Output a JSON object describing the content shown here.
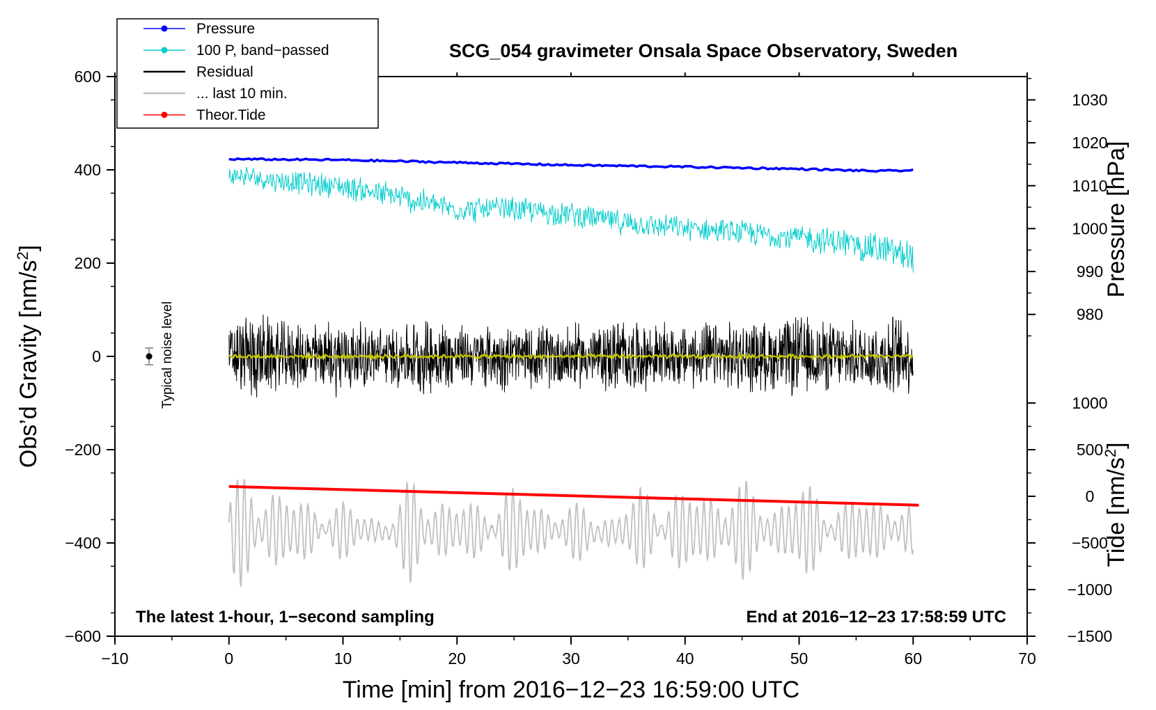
{
  "chart_data": {
    "type": "line",
    "title": "SCG_054 gravimeter Onsala Space Observatory, Sweden",
    "xlabel": "Time [min] from 2016−12−23 16:59:00 UTC",
    "ylabel_main": "Obs’d Gravity [nm/s",
    "ylabel_main_sup": "2",
    "ylabel_main_end": "]",
    "ylabel_pressure": "Pressure [hPa]",
    "ylabel_tide": "Tide [nm/s",
    "ylabel_tide_sup": "2",
    "ylabel_tide_end": "]",
    "xlim": [
      -10,
      70
    ],
    "ylim": [
      -600,
      600
    ],
    "x_ticks": [
      -10,
      0,
      10,
      20,
      30,
      40,
      50,
      60,
      70
    ],
    "x_tick_labels": [
      "−10",
      "0",
      "10",
      "20",
      "30",
      "40",
      "50",
      "60",
      "70"
    ],
    "y_ticks": [
      -600,
      -400,
      -200,
      0,
      200,
      400,
      600
    ],
    "y_tick_labels": [
      "−600",
      "−400",
      "−200",
      "0",
      "200",
      "400",
      "600"
    ],
    "pressure_ticks": [
      980,
      990,
      1000,
      1010,
      1020,
      1030
    ],
    "pressure_tick_labels": [
      "980",
      "990",
      "1000",
      "1010",
      "1020",
      "1030"
    ],
    "pressure_axis_span": {
      "value_low": 980,
      "value_high": 1030,
      "gravity_at_low": 90,
      "gravity_at_high": 550
    },
    "tide_ticks": [
      -1500,
      -1000,
      -500,
      0,
      500,
      1000
    ],
    "tide_tick_labels": [
      "−1500",
      "−1000",
      "−500",
      "0",
      "500",
      "1000"
    ],
    "tide_axis_span": {
      "value_low": -1500,
      "value_high": 1000,
      "gravity_at_low": -600,
      "gravity_at_high": -100
    },
    "annotation_left": "The latest 1-hour, 1−second sampling",
    "annotation_right": "End at 2016−12−23 17:58:59 UTC",
    "noise_label": "Typical noise level",
    "noise_bar": {
      "x": -7,
      "y": 0,
      "half_range": 18
    },
    "legend": [
      {
        "label": "Pressure",
        "color": "#0000ff",
        "marker": true
      },
      {
        "label": "100 P, band−passed",
        "color": "#00cccc",
        "marker": true
      },
      {
        "label": "Residual",
        "color": "#000000",
        "marker": false
      },
      {
        "label": "... last 10 min.",
        "color": "#c0c0c0",
        "marker": false
      },
      {
        "label": "Theor.Tide",
        "color": "#ff0000",
        "marker": true
      }
    ],
    "series": [
      {
        "name": "Pressure",
        "color": "#0000ff",
        "axis": "pressure",
        "x": [
          0,
          10,
          20,
          30,
          40,
          50,
          57,
          60
        ],
        "values": [
          1016.2,
          1016.0,
          1015.4,
          1014.8,
          1014.4,
          1013.9,
          1013.4,
          1013.6
        ]
      },
      {
        "name": "100 P, band−passed",
        "color": "#00cccc",
        "axis": "gravity",
        "x": [
          0,
          5,
          10,
          15,
          20,
          25,
          30,
          35,
          40,
          45,
          50,
          55,
          60
        ],
        "values": [
          390,
          375,
          365,
          340,
          315,
          315,
          305,
          285,
          275,
          265,
          255,
          240,
          215
        ],
        "amplitude": [
          25,
          28,
          30,
          35,
          30,
          32,
          30,
          30,
          28,
          30,
          32,
          38,
          45
        ]
      },
      {
        "name": "Residual",
        "color": "#000000",
        "axis": "gravity",
        "x": [
          0,
          2,
          4,
          6,
          8,
          10,
          12,
          14,
          16,
          18,
          20,
          22,
          24,
          26,
          28,
          30,
          32,
          34,
          36,
          38,
          40,
          42,
          44,
          46,
          48,
          50,
          52,
          54,
          56,
          58,
          60
        ],
        "values": [
          0,
          0,
          0,
          0,
          0,
          0,
          0,
          0,
          0,
          0,
          0,
          0,
          0,
          0,
          0,
          0,
          0,
          0,
          0,
          0,
          0,
          0,
          0,
          0,
          0,
          0,
          0,
          0,
          0,
          0,
          0
        ],
        "amplitude": [
          70,
          110,
          85,
          75,
          80,
          95,
          75,
          70,
          85,
          95,
          75,
          70,
          80,
          70,
          75,
          80,
          70,
          95,
          80,
          75,
          75,
          80,
          80,
          85,
          80,
          100,
          85,
          80,
          80,
          100,
          85
        ]
      },
      {
        "name": "Residual (smoothed)",
        "color": "#c8c800",
        "axis": "gravity",
        "x": [
          0,
          60
        ],
        "values": [
          0,
          0
        ],
        "amplitude": [
          5,
          5
        ]
      },
      {
        "name": "... last 10 min.",
        "color": "#c0c0c0",
        "axis": "gravity",
        "x": [
          0,
          2,
          4,
          6,
          8,
          10,
          12,
          14,
          16,
          18,
          20,
          22,
          24,
          26,
          28,
          30,
          32,
          34,
          36,
          38,
          40,
          42,
          44,
          46,
          48,
          50,
          52,
          54,
          56,
          58,
          60
        ],
        "values": [
          -380,
          -370,
          -370,
          -375,
          -370,
          -375,
          -370,
          -380,
          -370,
          -375,
          -370,
          -375,
          -370,
          -375,
          -370,
          -375,
          -380,
          -375,
          -370,
          -370,
          -375,
          -370,
          -375,
          -370,
          -375,
          -370,
          -375,
          -370,
          -375,
          -370,
          -375
        ],
        "amplitude": [
          100,
          140,
          120,
          70,
          80,
          70,
          40,
          40,
          120,
          110,
          60,
          70,
          110,
          90,
          70,
          60,
          70,
          40,
          100,
          100,
          90,
          110,
          120,
          100,
          80,
          110,
          100,
          70,
          90,
          90,
          50
        ]
      },
      {
        "name": "Theor.Tide",
        "color": "#ff0000",
        "axis": "gravity",
        "x": [
          0,
          60.5
        ],
        "values": [
          -279,
          -319
        ]
      }
    ]
  }
}
